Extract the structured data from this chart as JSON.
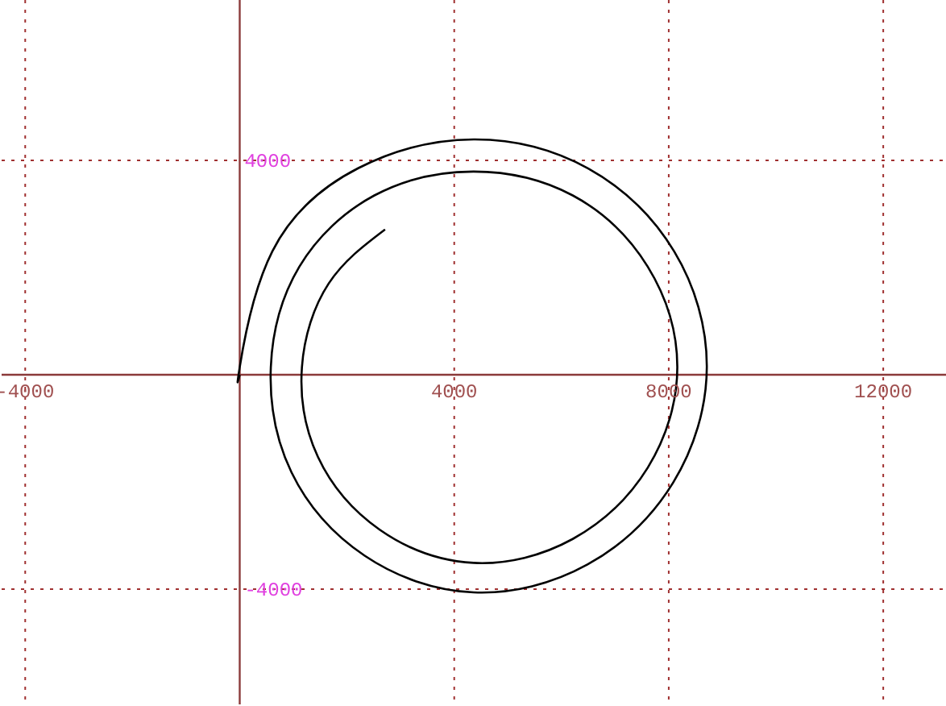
{
  "chart_data": {
    "type": "line",
    "x": [
      2710,
      1658,
      1160,
      1459,
      2610,
      4360,
      6210,
      7608,
      8160,
      7608,
      6210,
      4360,
      2510,
      1112,
      580,
      965,
      2330,
      4360,
      6485,
      8084,
      8710,
      8101,
      6500,
      4360,
      2215,
      610,
      0,
      0
    ],
    "series": [
      {
        "color": "#000000",
        "values": [
          2710,
          1700,
          140,
          -1535,
          -2891,
          -3510,
          -3064,
          -1735,
          140,
          2015,
          3344,
          3790,
          3344,
          2015,
          140,
          -1820,
          -3376,
          -4060,
          -3541,
          -2010,
          140,
          2300,
          3847,
          4390,
          3855,
          2305,
          140,
          0
        ]
      }
    ],
    "xlim": [
      -4440,
      13170
    ],
    "ylim": [
      -6150,
      6990
    ],
    "xticks": [
      -4000,
      4000,
      8000,
      12000
    ],
    "yticks": [
      -4000,
      4000
    ],
    "grid": true,
    "marker": "none",
    "line_style": "solid"
  }
}
